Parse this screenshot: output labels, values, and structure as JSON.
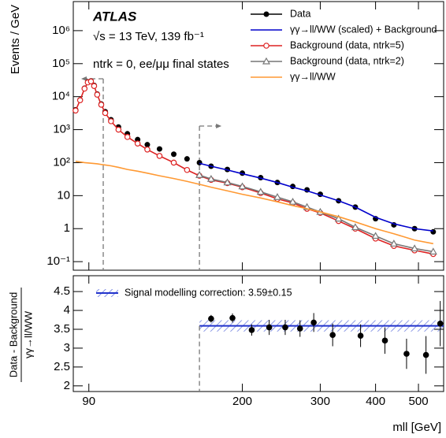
{
  "chart_data": [
    {
      "type": "line",
      "annotations": [
        "ATLAS",
        "√s = 13 TeV, 139 fb⁻¹",
        "ntrk = 0, ee/μμ final states"
      ],
      "ylabel": "Events / GeV",
      "log_x": true,
      "log_y": true,
      "xlim": [
        83,
        570
      ],
      "xticks": [
        90,
        200,
        300,
        400,
        500
      ],
      "ylim": [
        0.055,
        7600000
      ],
      "yticks": [
        {
          "value": 0.1,
          "label": "10⁻¹"
        },
        1,
        10,
        {
          "value": 100,
          "label": "10²"
        },
        {
          "value": 1000,
          "label": "10³"
        },
        {
          "value": 10000,
          "label": "10⁴"
        },
        {
          "value": 100000,
          "label": "10⁵"
        },
        {
          "value": 1000000,
          "label": "10⁶"
        }
      ],
      "selection_lines": [
        97,
        160
      ],
      "legend": "top-right",
      "x": [
        84,
        86,
        88,
        89.5,
        91,
        92.5,
        94,
        96,
        98,
        101,
        105,
        110,
        116,
        122,
        130,
        140,
        150,
        160,
        170,
        185,
        200,
        220,
        240,
        260,
        280,
        300,
        330,
        360,
        400,
        440,
        490,
        540
      ],
      "series": [
        {
          "name": "Data",
          "color": "#000000",
          "marker": "circle",
          "line": false,
          "values": [
            4000,
            8000,
            18000,
            28000,
            30000,
            22000,
            12000,
            6000,
            3500,
            2000,
            1200,
            750,
            500,
            350,
            260,
            180,
            130,
            100,
            78,
            62,
            48,
            35,
            25,
            19,
            15,
            11,
            7,
            4.5,
            2,
            1.3,
            1,
            0.8
          ]
        },
        {
          "name": "γγ→ll/WW (scaled) + Background",
          "color": "#0000cc",
          "marker": "none",
          "line": true,
          "values": [
            null,
            null,
            null,
            null,
            null,
            null,
            null,
            null,
            null,
            null,
            null,
            null,
            null,
            null,
            null,
            null,
            null,
            95,
            78,
            60,
            46,
            34,
            25,
            18,
            14,
            10.5,
            7,
            4.5,
            2.2,
            1.4,
            1.0,
            0.85
          ]
        },
        {
          "name": "Background (data, ntrk=5)",
          "color": "#dd2222",
          "marker": "open-circle",
          "line": true,
          "values": [
            3800,
            7800,
            17500,
            27000,
            29000,
            21000,
            11500,
            5700,
            3200,
            1800,
            1000,
            600,
            380,
            250,
            160,
            100,
            60,
            40,
            30,
            24,
            18,
            12,
            8,
            6,
            4,
            3,
            1.7,
            1,
            0.5,
            0.3,
            0.22,
            0.17
          ]
        },
        {
          "name": "Background (data, ntrk=2)",
          "color": "#777777",
          "marker": "open-triangle",
          "line": true,
          "values": [
            null,
            null,
            null,
            null,
            null,
            null,
            null,
            null,
            null,
            null,
            null,
            null,
            null,
            null,
            null,
            null,
            null,
            42,
            32,
            25,
            19,
            13,
            9,
            6.5,
            4.5,
            3.2,
            2,
            1.1,
            0.6,
            0.35,
            0.25,
            0.2
          ]
        },
        {
          "name": "γγ→ll/WW",
          "color": "#ff9933",
          "marker": "none",
          "line": true,
          "values": [
            110,
            105,
            100,
            98,
            96,
            94,
            92,
            88,
            85,
            80,
            72,
            62,
            55,
            48,
            40,
            33,
            27,
            22,
            18,
            14,
            11,
            8.5,
            6.5,
            5,
            4,
            3.2,
            2.3,
            1.6,
            1,
            0.7,
            0.45,
            0.35
          ]
        }
      ]
    },
    {
      "type": "scatter",
      "ylabel_numerator": "Data - Background",
      "ylabel_denominator": "γγ→ll/WW",
      "xlabel": "mll [GeV]",
      "log_x": true,
      "xlim": [
        83,
        570
      ],
      "xticks": [
        90,
        200,
        300,
        400,
        500
      ],
      "ylim": [
        1.85,
        4.92
      ],
      "yticks": [
        2,
        2.5,
        3,
        3.5,
        4,
        4.5
      ],
      "selection_line": 160,
      "x": [
        170,
        190,
        210,
        230,
        250,
        270,
        290,
        320,
        370,
        420,
        470,
        520,
        560
      ],
      "values": [
        3.78,
        3.8,
        3.48,
        3.55,
        3.55,
        3.52,
        3.68,
        3.35,
        3.33,
        3.2,
        2.85,
        2.82,
        3.65
      ],
      "errors": [
        0.1,
        0.12,
        0.15,
        0.2,
        0.2,
        0.22,
        0.25,
        0.3,
        0.3,
        0.35,
        0.4,
        0.5,
        0.6
      ],
      "color": "#000000",
      "band": {
        "label": "Signal modelling correction: 3.59±0.15",
        "value": 3.59,
        "error": 0.15,
        "color": "#2233cc"
      }
    }
  ]
}
